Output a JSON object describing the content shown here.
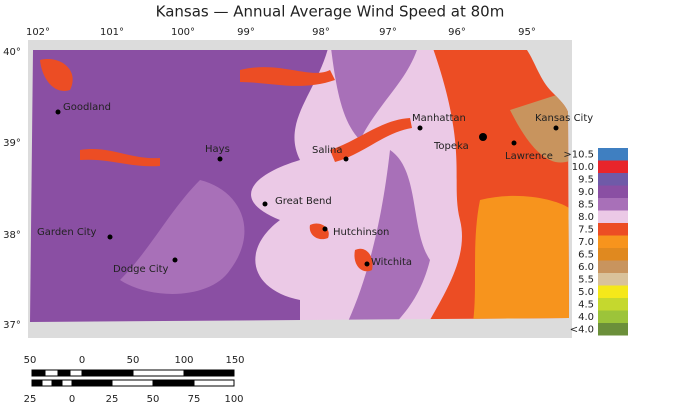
{
  "header": {
    "title": "Kansas — Annual Average Wind Speed at 80m"
  },
  "longitudes": [
    "102°",
    "101°",
    "100°",
    "99°",
    "98°",
    "97°",
    "96°",
    "95°"
  ],
  "latitudes": [
    "40°",
    "39°",
    "38°",
    "37°"
  ],
  "cities": [
    {
      "label": "Goodland"
    },
    {
      "label": "Hays"
    },
    {
      "label": "Salina"
    },
    {
      "label": "Manhattan"
    },
    {
      "label": "Topeka"
    },
    {
      "label": "Lawrence"
    },
    {
      "label": "Kansas City"
    },
    {
      "label": "Great Bend"
    },
    {
      "label": "Hutchinson"
    },
    {
      "label": "Witchita"
    },
    {
      "label": "Garden City"
    },
    {
      "label": "Dodge City"
    }
  ],
  "legend": [
    {
      "label": ">10.5",
      "color": "#3f7fc1"
    },
    {
      "label": "10.0",
      "color": "#e8252b"
    },
    {
      "label": "9.5",
      "color": "#6f5aa8"
    },
    {
      "label": "9.0",
      "color": "#8a4fa3"
    },
    {
      "label": "8.5",
      "color": "#a870b8"
    },
    {
      "label": "8.0",
      "color": "#ebc9e6"
    },
    {
      "label": "7.5",
      "color": "#ec4d24"
    },
    {
      "label": "7.0",
      "color": "#f7941d"
    },
    {
      "label": "6.5",
      "color": "#e0891f"
    },
    {
      "label": "6.0",
      "color": "#c8945e"
    },
    {
      "label": "5.5",
      "color": "#d9c29b"
    },
    {
      "label": "5.0",
      "color": "#f5e81a"
    },
    {
      "label": "4.5",
      "color": "#c5d82e"
    },
    {
      "label": "4.0",
      "color": "#9cc43a"
    },
    {
      "label": "<4.0",
      "color": "#6b8f3a"
    }
  ],
  "scale": {
    "miles": [
      "50",
      "0",
      "50",
      "100",
      "150"
    ],
    "kilometers": [
      "25",
      "0",
      "25",
      "50",
      "75",
      "100"
    ]
  }
}
